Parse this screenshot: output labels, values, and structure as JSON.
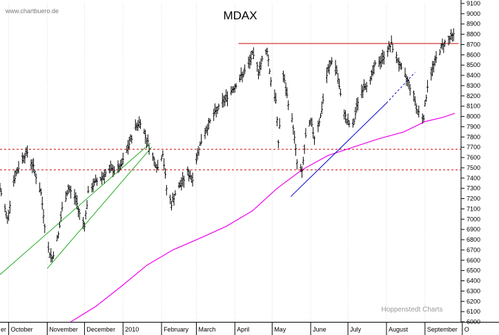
{
  "source_label": "www.chartbuero.de",
  "watermark": "Hoppenstedt Charts",
  "chart_data": {
    "type": "bar",
    "title": "MDAX",
    "ylim": [
      6000,
      9100
    ],
    "yticks": [
      6000,
      6100,
      6200,
      6300,
      6400,
      6500,
      6600,
      6700,
      6800,
      6900,
      7000,
      7100,
      7200,
      7300,
      7400,
      7500,
      7600,
      7700,
      7800,
      7900,
      8000,
      8100,
      8200,
      8300,
      8400,
      8500,
      8600,
      8700,
      8800,
      8900,
      9000,
      9100
    ],
    "ytick_labels": [
      "6000",
      "6100",
      "6200",
      "6300",
      "6400",
      "6500",
      "6600",
      "6700",
      "6800",
      "6900",
      "7000",
      "7100",
      "7200",
      "7300",
      "7400",
      "7500",
      "7600",
      "7700",
      "7800",
      "7900",
      "8000",
      "8100",
      "8200",
      "8300",
      "8400",
      "8500",
      "8600",
      "8700",
      "8800",
      "8900",
      "9000",
      "9100"
    ],
    "xrange": [
      "2009-09-24",
      "2010-09-30"
    ],
    "months": [
      {
        "label": "er",
        "start": "2009-09-01"
      },
      {
        "label": "October",
        "start": "2009-10-01"
      },
      {
        "label": "November",
        "start": "2009-11-01"
      },
      {
        "label": "December",
        "start": "2009-12-01"
      },
      {
        "label": "2010",
        "start": "2010-01-01"
      },
      {
        "label": "February",
        "start": "2010-02-01"
      },
      {
        "label": "March",
        "start": "2010-03-01"
      },
      {
        "label": "April",
        "start": "2010-04-01"
      },
      {
        "label": "May",
        "start": "2010-05-01"
      },
      {
        "label": "June",
        "start": "2010-06-01"
      },
      {
        "label": "July",
        "start": "2010-07-01"
      },
      {
        "label": "August",
        "start": "2010-08-01"
      },
      {
        "label": "September",
        "start": "2010-09-01"
      },
      {
        "label": "O",
        "start": "2010-10-01"
      }
    ],
    "price_path": [
      [
        "2009-09-24",
        7300
      ],
      [
        "2009-09-30",
        7000
      ],
      [
        "2009-10-05",
        7380
      ],
      [
        "2009-10-12",
        7600
      ],
      [
        "2009-10-16",
        7650
      ],
      [
        "2009-10-21",
        7500
      ],
      [
        "2009-10-27",
        7250
      ],
      [
        "2009-10-30",
        6950
      ],
      [
        "2009-11-02",
        6700
      ],
      [
        "2009-11-05",
        6620
      ],
      [
        "2009-11-10",
        6850
      ],
      [
        "2009-11-13",
        7100
      ],
      [
        "2009-11-18",
        7300
      ],
      [
        "2009-11-24",
        7200
      ],
      [
        "2009-11-27",
        7050
      ],
      [
        "2009-12-01",
        6950
      ],
      [
        "2009-12-04",
        7250
      ],
      [
        "2009-12-09",
        7350
      ],
      [
        "2009-12-14",
        7400
      ],
      [
        "2009-12-18",
        7450
      ],
      [
        "2009-12-23",
        7480
      ],
      [
        "2009-12-30",
        7500
      ],
      [
        "2010-01-05",
        7700
      ],
      [
        "2010-01-11",
        7900
      ],
      [
        "2010-01-15",
        7950
      ],
      [
        "2010-01-20",
        7780
      ],
      [
        "2010-01-25",
        7600
      ],
      [
        "2010-01-29",
        7500
      ],
      [
        "2010-02-02",
        7650
      ],
      [
        "2010-02-05",
        7300
      ],
      [
        "2010-02-09",
        7150
      ],
      [
        "2010-02-12",
        7250
      ],
      [
        "2010-02-17",
        7350
      ],
      [
        "2010-02-22",
        7450
      ],
      [
        "2010-02-26",
        7400
      ],
      [
        "2010-03-03",
        7700
      ],
      [
        "2010-03-08",
        7850
      ],
      [
        "2010-03-12",
        7950
      ],
      [
        "2010-03-17",
        8050
      ],
      [
        "2010-03-23",
        8150
      ],
      [
        "2010-03-29",
        8250
      ],
      [
        "2010-04-01",
        8300
      ],
      [
        "2010-04-07",
        8400
      ],
      [
        "2010-04-12",
        8500
      ],
      [
        "2010-04-15",
        8600
      ],
      [
        "2010-04-20",
        8450
      ],
      [
        "2010-04-23",
        8550
      ],
      [
        "2010-04-27",
        8650
      ],
      [
        "2010-04-30",
        8350
      ],
      [
        "2010-05-04",
        8150
      ],
      [
        "2010-05-06",
        7750
      ],
      [
        "2010-05-10",
        8400
      ],
      [
        "2010-05-13",
        8200
      ],
      [
        "2010-05-18",
        7900
      ],
      [
        "2010-05-21",
        7550
      ],
      [
        "2010-05-25",
        7450
      ],
      [
        "2010-05-28",
        7800
      ],
      [
        "2010-06-01",
        7950
      ],
      [
        "2010-06-04",
        7800
      ],
      [
        "2010-06-09",
        8000
      ],
      [
        "2010-06-14",
        8400
      ],
      [
        "2010-06-18",
        8550
      ],
      [
        "2010-06-22",
        8450
      ],
      [
        "2010-06-25",
        8200
      ],
      [
        "2010-06-30",
        7950
      ],
      [
        "2010-07-05",
        7900
      ],
      [
        "2010-07-09",
        8150
      ],
      [
        "2010-07-14",
        8300
      ],
      [
        "2010-07-19",
        8350
      ],
      [
        "2010-07-23",
        8500
      ],
      [
        "2010-07-28",
        8550
      ],
      [
        "2010-08-02",
        8650
      ],
      [
        "2010-08-05",
        8700
      ],
      [
        "2010-08-10",
        8550
      ],
      [
        "2010-08-13",
        8450
      ],
      [
        "2010-08-18",
        8350
      ],
      [
        "2010-08-23",
        8200
      ],
      [
        "2010-08-26",
        8050
      ],
      [
        "2010-08-31",
        8000
      ],
      [
        "2010-09-03",
        8300
      ],
      [
        "2010-09-08",
        8500
      ],
      [
        "2010-09-13",
        8650
      ],
      [
        "2010-09-17",
        8720
      ],
      [
        "2010-09-21",
        8760
      ],
      [
        "2010-09-24",
        8790
      ]
    ],
    "moving_average": [
      [
        "2009-11-20",
        6000
      ],
      [
        "2009-12-10",
        6150
      ],
      [
        "2009-12-31",
        6350
      ],
      [
        "2010-01-20",
        6550
      ],
      [
        "2010-02-10",
        6700
      ],
      [
        "2010-03-05",
        6820
      ],
      [
        "2010-03-25",
        6930
      ],
      [
        "2010-04-15",
        7080
      ],
      [
        "2010-05-05",
        7300
      ],
      [
        "2010-05-25",
        7480
      ],
      [
        "2010-06-15",
        7620
      ],
      [
        "2010-07-05",
        7700
      ],
      [
        "2010-07-25",
        7780
      ],
      [
        "2010-08-15",
        7850
      ],
      [
        "2010-09-01",
        7950
      ],
      [
        "2010-09-15",
        7990
      ],
      [
        "2010-09-25",
        8030
      ]
    ],
    "resistance_line": {
      "value": 8710,
      "from": "2010-04-04",
      "to": "2010-09-28"
    },
    "horizontal_levels": [
      7680,
      7480
    ],
    "trendlines": [
      {
        "name": "green-1",
        "color": "#22aa22",
        "from": [
          "2009-09-24",
          6460
        ],
        "to": [
          "2010-01-23",
          7740
        ]
      },
      {
        "name": "green-2",
        "color": "#22aa22",
        "from": [
          "2009-11-01",
          6520
        ],
        "to": [
          "2010-01-24",
          7700
        ]
      },
      {
        "name": "blue-solid",
        "color": "#0000cc",
        "from": [
          "2010-05-16",
          7220
        ],
        "to": [
          "2010-08-01",
          8130
        ]
      },
      {
        "name": "blue-dashed",
        "color": "#0000cc",
        "dashed": true,
        "from": [
          "2010-08-01",
          8130
        ],
        "to": [
          "2010-08-24",
          8430
        ]
      }
    ],
    "colors": {
      "price": "#000000",
      "moving_average": "#ee00ee",
      "resistance": "#cc0000",
      "levels": "#cc0000",
      "watermark": "#9a9a9a",
      "source": "#7a7a7a"
    }
  }
}
